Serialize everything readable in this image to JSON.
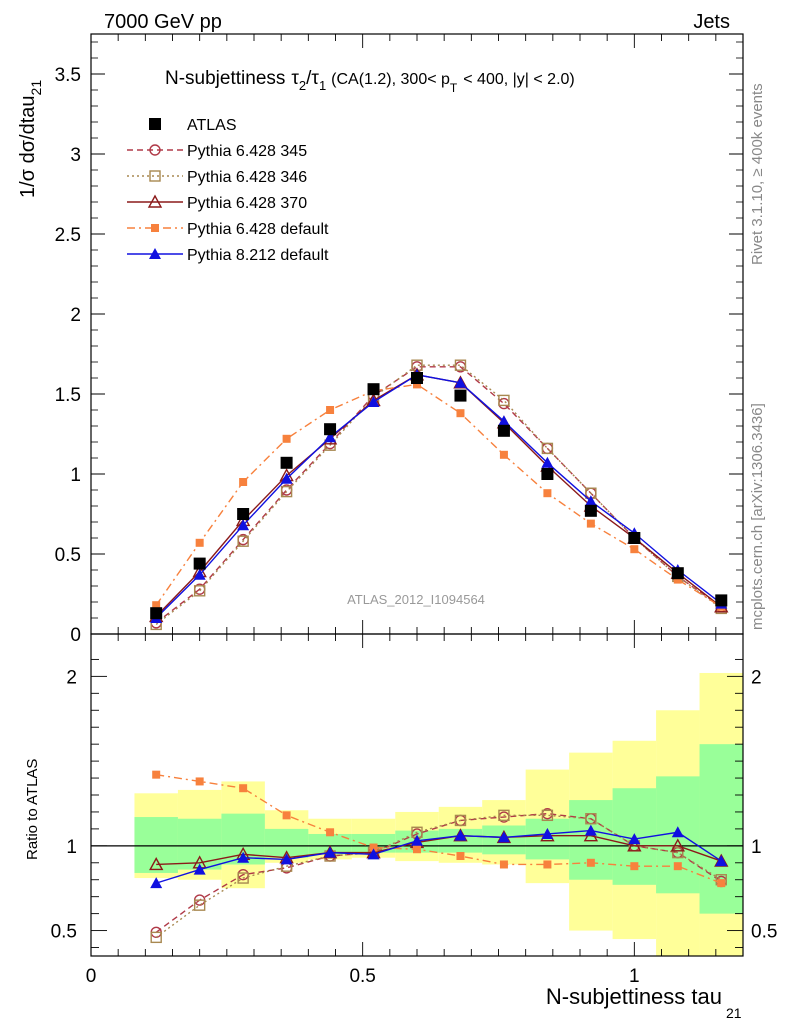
{
  "header": {
    "left": "7000 GeV pp",
    "right": "Jets"
  },
  "side_labels": {
    "rivet": "Rivet 3.1.10, ≥ 400k events",
    "mcplots": "mcplots.cern.ch [arXiv:1306.3436]"
  },
  "chart_data": {
    "type": "line",
    "title": "N-subjettiness τ₂/τ₁ (CA(1.2), 300< p_T < 400, |y| < 2.0)",
    "title_main": "N-subjettiness",
    "title_tau2": "τ",
    "title_sub2": "2",
    "title_slash": "/",
    "title_tau1": "τ",
    "title_sub1": "1",
    "title_rest1": "(CA(1.2), 300< p",
    "title_sub_t": "T",
    "title_rest2": "< 400, |y| < 2.0)",
    "analysis_label": "ATLAS_2012_I1094564",
    "ylabel_main": "1/σ dσ/dtau",
    "ylabel_sub": "21",
    "ratio_ylabel": "Ratio to ATLAS",
    "xlabel_main": "N-subjettiness tau",
    "xlabel_sub": "21",
    "xlim": [
      0,
      1.2
    ],
    "ylim": [
      0,
      3.75
    ],
    "ratio_ylim": [
      0.35,
      2.25
    ],
    "x_ticks": [
      "0",
      "0.5",
      "1"
    ],
    "y_ticks": [
      "0",
      "0.5",
      "1",
      "1.5",
      "2",
      "2.5",
      "3",
      "3.5"
    ],
    "ratio_ticks": [
      "0.5",
      "1",
      "2"
    ],
    "x": [
      0.12,
      0.2,
      0.28,
      0.36,
      0.44,
      0.52,
      0.6,
      0.68,
      0.76,
      0.84,
      0.92,
      1.0,
      1.08,
      1.16
    ],
    "bin_edges": [
      0.08,
      0.16,
      0.24,
      0.32,
      0.4,
      0.48,
      0.56,
      0.64,
      0.72,
      0.8,
      0.88,
      0.96,
      1.04,
      1.12,
      1.2
    ],
    "band_green": [
      [
        0.84,
        1.17
      ],
      [
        0.86,
        1.16
      ],
      [
        0.89,
        1.19
      ],
      [
        0.93,
        1.1
      ],
      [
        0.95,
        1.07
      ],
      [
        0.96,
        1.07
      ],
      [
        0.96,
        1.09
      ],
      [
        0.96,
        1.1
      ],
      [
        0.95,
        1.12
      ],
      [
        0.92,
        1.16
      ],
      [
        0.8,
        1.27
      ],
      [
        0.77,
        1.34
      ],
      [
        0.72,
        1.41
      ],
      [
        0.6,
        1.6
      ]
    ],
    "band_yellow": [
      [
        0.81,
        1.31
      ],
      [
        0.8,
        1.33
      ],
      [
        0.75,
        1.38
      ],
      [
        0.9,
        1.21
      ],
      [
        0.92,
        1.16
      ],
      [
        0.93,
        1.16
      ],
      [
        0.91,
        1.2
      ],
      [
        0.9,
        1.23
      ],
      [
        0.89,
        1.27
      ],
      [
        0.78,
        1.45
      ],
      [
        0.5,
        1.55
      ],
      [
        0.45,
        1.62
      ],
      [
        0.35,
        1.8
      ],
      [
        0.35,
        2.02
      ]
    ],
    "series": [
      {
        "name": "ATLAS",
        "color": "#000000",
        "marker": "filled-square",
        "line": "none",
        "values": [
          0.13,
          0.44,
          0.75,
          1.07,
          1.28,
          1.53,
          1.6,
          1.49,
          1.27,
          1.0,
          0.77,
          0.6,
          0.38,
          0.21
        ],
        "ratio": [
          1,
          1,
          1,
          1,
          1,
          1,
          1,
          1,
          1,
          1,
          1,
          1,
          1,
          1
        ]
      },
      {
        "name": "Pythia 6.428 345",
        "color": "#b03a48",
        "marker": "open-circle",
        "line": "dashed",
        "values": [
          0.07,
          0.28,
          0.59,
          0.9,
          1.19,
          1.49,
          1.67,
          1.67,
          1.44,
          1.16,
          0.88,
          0.6,
          0.36,
          0.17
        ],
        "ratio": [
          0.49,
          0.68,
          0.83,
          0.87,
          0.94,
          0.96,
          1.07,
          1.15,
          1.17,
          1.19,
          1.16,
          1.0,
          0.96,
          0.79
        ]
      },
      {
        "name": "Pythia 6.428 346",
        "color": "#a88850",
        "marker": "open-square",
        "line": "dotted",
        "values": [
          0.06,
          0.27,
          0.58,
          0.89,
          1.18,
          1.48,
          1.68,
          1.68,
          1.46,
          1.16,
          0.88,
          0.6,
          0.36,
          0.16
        ],
        "ratio": [
          0.46,
          0.65,
          0.81,
          0.88,
          0.94,
          0.96,
          1.08,
          1.15,
          1.18,
          1.18,
          1.16,
          1.0,
          0.96,
          0.8
        ]
      },
      {
        "name": "Pythia 6.428 370",
        "color": "#8b1a1a",
        "marker": "open-triangle",
        "line": "solid",
        "values": [
          0.11,
          0.39,
          0.71,
          0.99,
          1.22,
          1.46,
          1.62,
          1.57,
          1.32,
          1.05,
          0.8,
          0.6,
          0.38,
          0.17
        ],
        "ratio": [
          0.89,
          0.9,
          0.95,
          0.93,
          0.96,
          0.96,
          1.02,
          1.06,
          1.05,
          1.06,
          1.06,
          1.0,
          1.0,
          0.91
        ]
      },
      {
        "name": "Pythia 6.428 default",
        "color": "#f7813d",
        "marker": "filled-square-small",
        "line": "dashdot",
        "values": [
          0.18,
          0.57,
          0.95,
          1.22,
          1.4,
          1.52,
          1.56,
          1.38,
          1.12,
          0.88,
          0.69,
          0.53,
          0.34,
          0.17
        ],
        "ratio": [
          1.42,
          1.38,
          1.34,
          1.18,
          1.08,
          0.99,
          0.98,
          0.94,
          0.89,
          0.89,
          0.9,
          0.88,
          0.88,
          0.78
        ]
      },
      {
        "name": "Pythia 8.212 default",
        "color": "#1010e0",
        "marker": "filled-triangle",
        "line": "solid",
        "values": [
          0.1,
          0.37,
          0.68,
          0.97,
          1.23,
          1.45,
          1.62,
          1.57,
          1.33,
          1.07,
          0.83,
          0.63,
          0.4,
          0.19
        ],
        "ratio": [
          0.78,
          0.86,
          0.93,
          0.92,
          0.96,
          0.95,
          1.03,
          1.06,
          1.05,
          1.07,
          1.09,
          1.04,
          1.08,
          0.91
        ]
      }
    ]
  }
}
